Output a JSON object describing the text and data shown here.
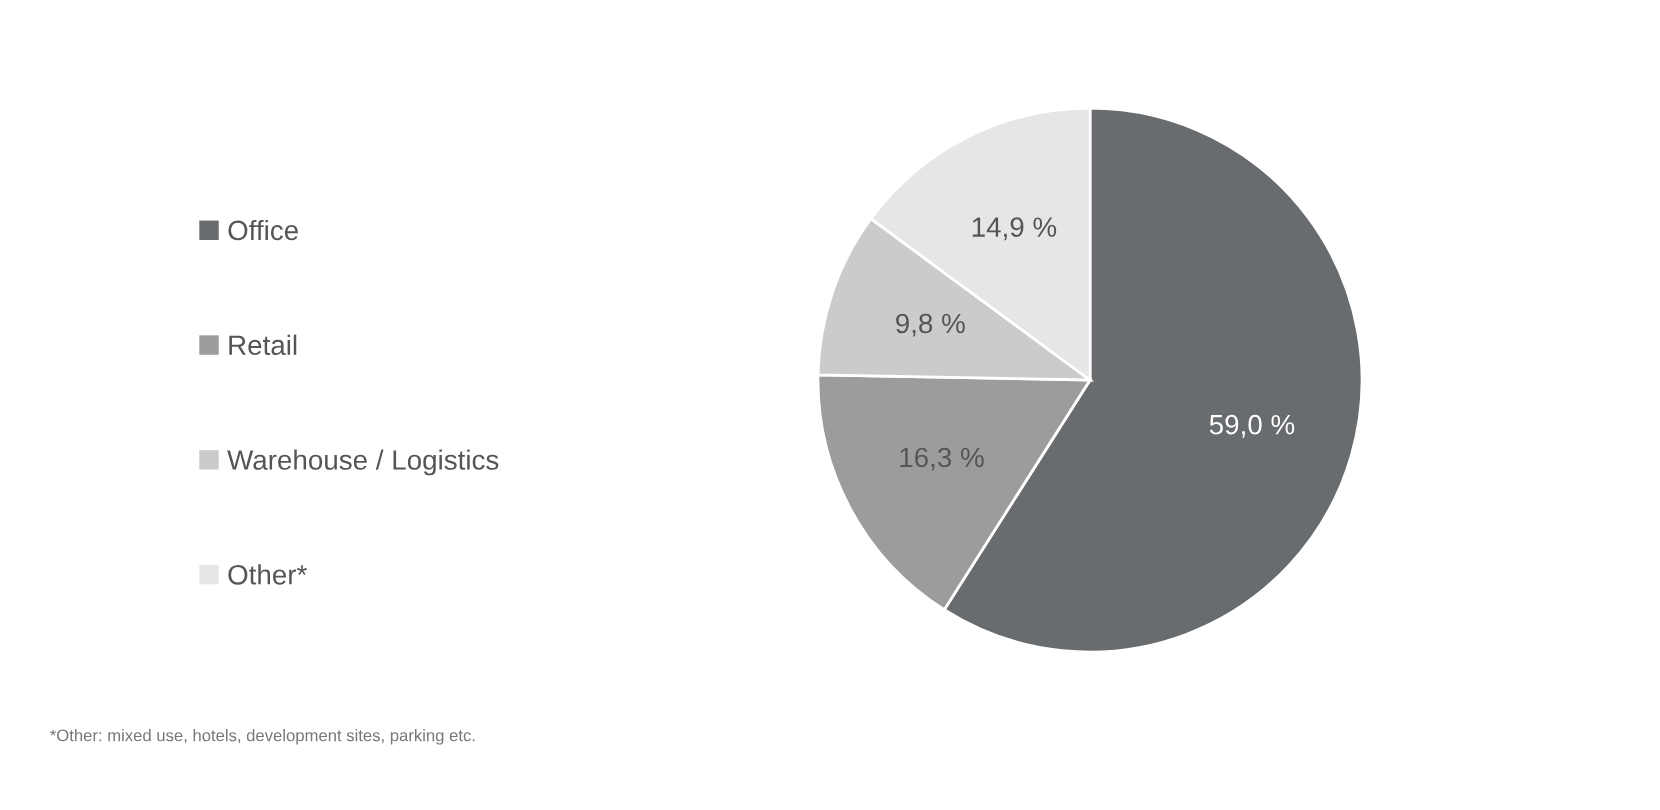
{
  "chart_data": {
    "type": "pie",
    "categories": [
      "Office",
      "Retail",
      "Warehouse / Logistics",
      "Other*"
    ],
    "values": [
      59.0,
      16.3,
      9.8,
      14.9
    ],
    "value_labels": [
      "59,0 %",
      "16,3 %",
      "9,8 %",
      "14,9 %"
    ],
    "colors": [
      "#696c6e",
      "#9c9c9c",
      "#cbcbcb",
      "#e6e6e6"
    ],
    "legend": "left",
    "annotations": [
      "*Other: mixed use, hotels, development sites, parking etc."
    ]
  }
}
